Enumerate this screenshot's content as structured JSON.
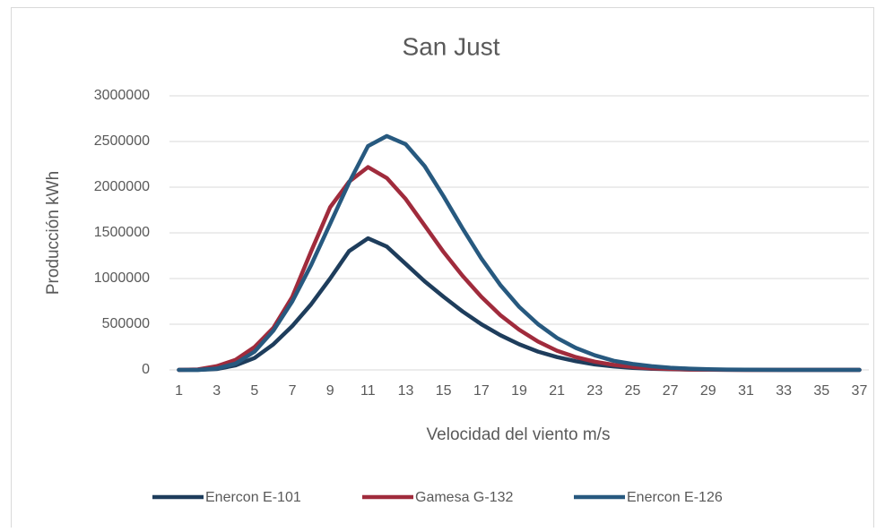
{
  "chart_data": {
    "type": "line",
    "title": "San Just",
    "y_label": "Producción  kWh",
    "x_label": "Velocidad del viento m/s",
    "categories": [
      1,
      null,
      3,
      null,
      5,
      null,
      7,
      null,
      9,
      null,
      11,
      null,
      13,
      null,
      15,
      null,
      17,
      null,
      19,
      null,
      21,
      null,
      23,
      null,
      25,
      null,
      27,
      null,
      29,
      null,
      31,
      null,
      33,
      null,
      35,
      null,
      37
    ],
    "series": [
      {
        "name": "Enercon E-101",
        "color": "#1e3d5c",
        "values": [
          0,
          0,
          10000,
          50000,
          130000,
          280000,
          480000,
          720000,
          1000000,
          1300000,
          1440000,
          1350000,
          1160000,
          970000,
          800000,
          640000,
          500000,
          380000,
          280000,
          200000,
          140000,
          95000,
          60000,
          38000,
          22000,
          12000,
          7000,
          4000,
          2000,
          1000,
          0,
          0,
          0,
          0,
          0,
          0,
          0
        ]
      },
      {
        "name": "Gamesa G-132",
        "color": "#a02b3c",
        "values": [
          0,
          5000,
          40000,
          110000,
          250000,
          460000,
          800000,
          1300000,
          1780000,
          2060000,
          2220000,
          2100000,
          1870000,
          1580000,
          1290000,
          1030000,
          800000,
          600000,
          440000,
          310000,
          210000,
          140000,
          90000,
          55000,
          32000,
          18000,
          10000,
          5000,
          2500,
          1000,
          0,
          0,
          0,
          0,
          0,
          0,
          0
        ]
      },
      {
        "name": "Enercon E-126",
        "color": "#27597f",
        "values": [
          0,
          0,
          15000,
          70000,
          200000,
          430000,
          750000,
          1150000,
          1600000,
          2050000,
          2450000,
          2560000,
          2470000,
          2230000,
          1900000,
          1550000,
          1220000,
          930000,
          690000,
          500000,
          350000,
          240000,
          160000,
          100000,
          65000,
          40000,
          24000,
          14000,
          8000,
          4000,
          2000,
          1000,
          0,
          0,
          0,
          0,
          0
        ]
      }
    ],
    "ylim": [
      0,
      3000000
    ],
    "yticks": [
      0,
      500000,
      1000000,
      1500000,
      2000000,
      2500000,
      3000000
    ],
    "grid": true,
    "legend": "bottom"
  }
}
